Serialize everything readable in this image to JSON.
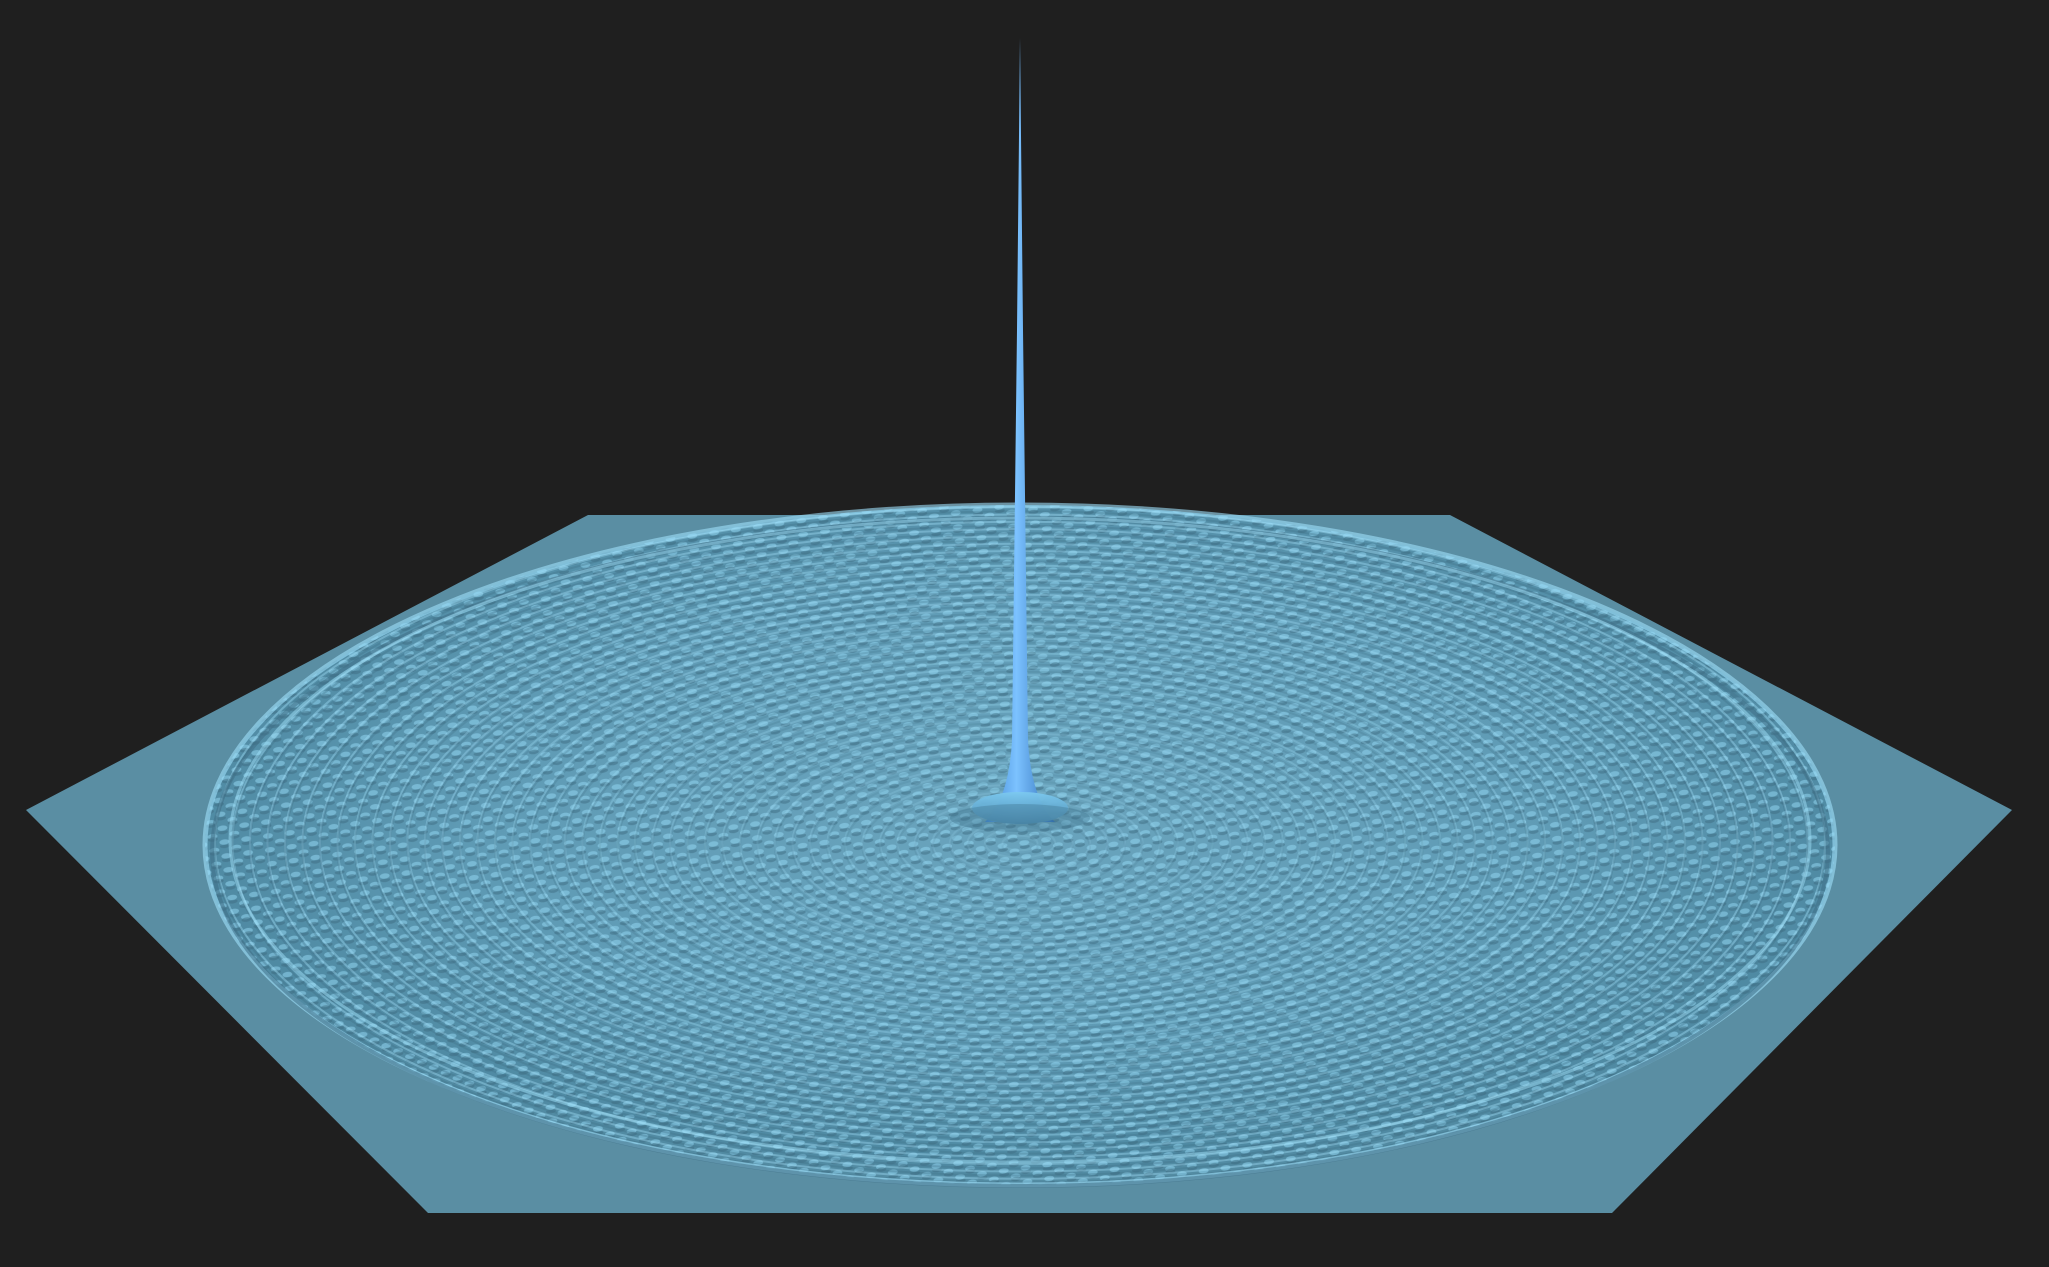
{
  "scene": {
    "background_color": "#1f1f1f",
    "plane_color": "#5a8ea3",
    "wave_highlight_color": "#a8e6ff",
    "wave_shadow_color": "#3e6f86",
    "spike_color": "#5aaaf0",
    "plane_shape": "hexagon",
    "features": [
      "central-spike",
      "concentric-ripples",
      "checkerboard-interference"
    ]
  }
}
